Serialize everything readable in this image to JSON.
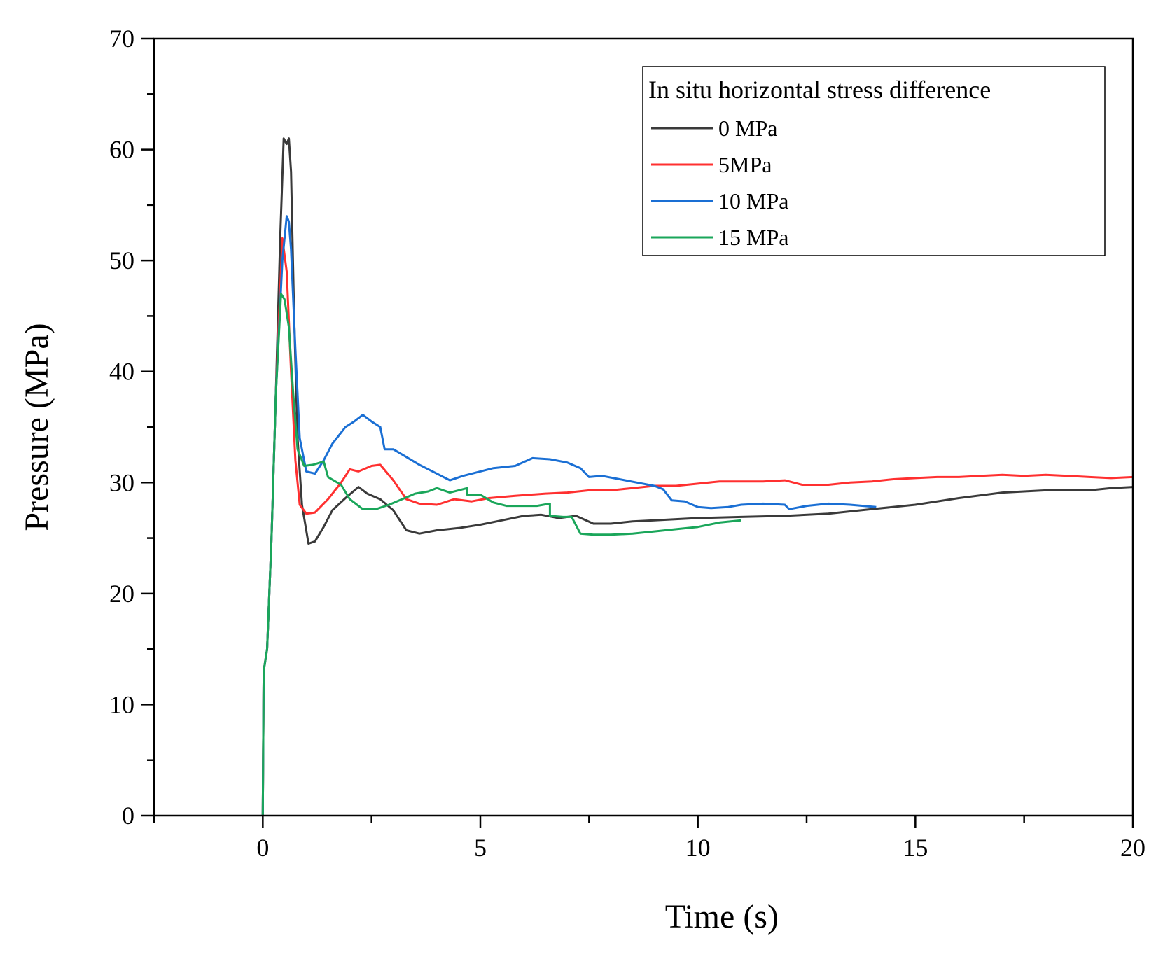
{
  "chart_data": {
    "type": "line",
    "xlabel": "Time (s)",
    "ylabel": "Pressure (MPa)",
    "xlim": [
      -2.5,
      20
    ],
    "ylim": [
      0,
      70
    ],
    "xticks": [
      0,
      5,
      10,
      15,
      20
    ],
    "yticks": [
      0,
      10,
      20,
      30,
      40,
      50,
      60,
      70
    ],
    "legend": {
      "title": "In situ horizontal stress difference",
      "position": "top-right"
    },
    "series": [
      {
        "name": "0 MPa",
        "color": "#3a3a3a",
        "points": [
          [
            0,
            0
          ],
          [
            0.02,
            13
          ],
          [
            0.1,
            15
          ],
          [
            0.2,
            25
          ],
          [
            0.3,
            38
          ],
          [
            0.4,
            52
          ],
          [
            0.48,
            61
          ],
          [
            0.55,
            60.5
          ],
          [
            0.6,
            61
          ],
          [
            0.65,
            58
          ],
          [
            0.72,
            45
          ],
          [
            0.8,
            34
          ],
          [
            0.9,
            28
          ],
          [
            1.05,
            24.5
          ],
          [
            1.2,
            24.7
          ],
          [
            1.4,
            26
          ],
          [
            1.6,
            27.5
          ],
          [
            1.9,
            28.6
          ],
          [
            2.2,
            29.6
          ],
          [
            2.4,
            29
          ],
          [
            2.7,
            28.5
          ],
          [
            3.0,
            27.5
          ],
          [
            3.3,
            25.7
          ],
          [
            3.6,
            25.4
          ],
          [
            4.0,
            25.7
          ],
          [
            4.5,
            25.9
          ],
          [
            5.0,
            26.2
          ],
          [
            5.5,
            26.6
          ],
          [
            6.0,
            27
          ],
          [
            6.4,
            27.1
          ],
          [
            6.8,
            26.8
          ],
          [
            7.2,
            27
          ],
          [
            7.6,
            26.3
          ],
          [
            8.0,
            26.3
          ],
          [
            8.5,
            26.5
          ],
          [
            9.0,
            26.6
          ],
          [
            9.5,
            26.7
          ],
          [
            10.0,
            26.8
          ],
          [
            11.0,
            26.9
          ],
          [
            12.0,
            27
          ],
          [
            13.0,
            27.2
          ],
          [
            14.0,
            27.6
          ],
          [
            15.0,
            28
          ],
          [
            16.0,
            28.6
          ],
          [
            17.0,
            29.1
          ],
          [
            18.0,
            29.3
          ],
          [
            19.0,
            29.3
          ],
          [
            19.5,
            29.5
          ],
          [
            20.0,
            29.6
          ]
        ]
      },
      {
        "name": "5MPa",
        "color": "#ff3030",
        "points": [
          [
            0,
            0
          ],
          [
            0.02,
            13
          ],
          [
            0.1,
            15
          ],
          [
            0.2,
            25
          ],
          [
            0.3,
            38
          ],
          [
            0.45,
            52
          ],
          [
            0.55,
            49
          ],
          [
            0.65,
            40
          ],
          [
            0.75,
            32
          ],
          [
            0.85,
            28
          ],
          [
            1.0,
            27.2
          ],
          [
            1.2,
            27.3
          ],
          [
            1.5,
            28.5
          ],
          [
            1.8,
            30
          ],
          [
            2.0,
            31.2
          ],
          [
            2.2,
            31
          ],
          [
            2.5,
            31.5
          ],
          [
            2.7,
            31.6
          ],
          [
            3.0,
            30.2
          ],
          [
            3.3,
            28.5
          ],
          [
            3.6,
            28.1
          ],
          [
            4.0,
            28
          ],
          [
            4.4,
            28.5
          ],
          [
            4.8,
            28.3
          ],
          [
            5.2,
            28.6
          ],
          [
            5.8,
            28.8
          ],
          [
            6.5,
            29
          ],
          [
            7.0,
            29.1
          ],
          [
            7.5,
            29.3
          ],
          [
            8.0,
            29.3
          ],
          [
            8.5,
            29.5
          ],
          [
            9.0,
            29.7
          ],
          [
            9.5,
            29.7
          ],
          [
            10.0,
            29.9
          ],
          [
            10.5,
            30.1
          ],
          [
            11.0,
            30.1
          ],
          [
            11.5,
            30.1
          ],
          [
            12.0,
            30.2
          ],
          [
            12.4,
            29.8
          ],
          [
            13.0,
            29.8
          ],
          [
            13.5,
            30
          ],
          [
            14.0,
            30.1
          ],
          [
            14.5,
            30.3
          ],
          [
            15.0,
            30.4
          ],
          [
            15.5,
            30.5
          ],
          [
            16.0,
            30.5
          ],
          [
            16.5,
            30.6
          ],
          [
            17.0,
            30.7
          ],
          [
            17.5,
            30.6
          ],
          [
            18.0,
            30.7
          ],
          [
            18.5,
            30.6
          ],
          [
            19.0,
            30.5
          ],
          [
            19.5,
            30.4
          ],
          [
            20.0,
            30.5
          ]
        ]
      },
      {
        "name": "10 MPa",
        "color": "#1a6fd4",
        "points": [
          [
            0,
            0
          ],
          [
            0.02,
            13
          ],
          [
            0.1,
            15
          ],
          [
            0.2,
            25
          ],
          [
            0.3,
            38
          ],
          [
            0.45,
            50
          ],
          [
            0.55,
            54
          ],
          [
            0.6,
            53.5
          ],
          [
            0.65,
            51
          ],
          [
            0.75,
            42
          ],
          [
            0.85,
            34
          ],
          [
            1.0,
            31
          ],
          [
            1.2,
            30.8
          ],
          [
            1.4,
            32
          ],
          [
            1.6,
            33.5
          ],
          [
            1.9,
            35
          ],
          [
            2.1,
            35.5
          ],
          [
            2.3,
            36.1
          ],
          [
            2.5,
            35.5
          ],
          [
            2.7,
            35
          ],
          [
            2.8,
            33
          ],
          [
            3.0,
            33
          ],
          [
            3.3,
            32.3
          ],
          [
            3.6,
            31.6
          ],
          [
            4.0,
            30.8
          ],
          [
            4.3,
            30.2
          ],
          [
            4.6,
            30.6
          ],
          [
            5.0,
            31
          ],
          [
            5.3,
            31.3
          ],
          [
            5.8,
            31.5
          ],
          [
            6.2,
            32.2
          ],
          [
            6.6,
            32.1
          ],
          [
            7.0,
            31.8
          ],
          [
            7.3,
            31.3
          ],
          [
            7.5,
            30.5
          ],
          [
            7.8,
            30.6
          ],
          [
            8.2,
            30.3
          ],
          [
            8.6,
            30
          ],
          [
            9.0,
            29.7
          ],
          [
            9.2,
            29.4
          ],
          [
            9.4,
            28.4
          ],
          [
            9.7,
            28.3
          ],
          [
            10.0,
            27.8
          ],
          [
            10.3,
            27.7
          ],
          [
            10.7,
            27.8
          ],
          [
            11.0,
            28
          ],
          [
            11.5,
            28.1
          ],
          [
            12.0,
            28
          ],
          [
            12.1,
            27.6
          ],
          [
            12.5,
            27.9
          ],
          [
            13.0,
            28.1
          ],
          [
            13.5,
            28
          ],
          [
            14.1,
            27.8
          ]
        ]
      },
      {
        "name": "15 MPa",
        "color": "#1aa65a",
        "points": [
          [
            0,
            0
          ],
          [
            0.02,
            13
          ],
          [
            0.1,
            15
          ],
          [
            0.2,
            25
          ],
          [
            0.3,
            38
          ],
          [
            0.42,
            47
          ],
          [
            0.5,
            46.5
          ],
          [
            0.6,
            44
          ],
          [
            0.7,
            38
          ],
          [
            0.8,
            33
          ],
          [
            0.95,
            31.5
          ],
          [
            1.15,
            31.6
          ],
          [
            1.4,
            31.9
          ],
          [
            1.5,
            30.5
          ],
          [
            1.8,
            29.8
          ],
          [
            2.0,
            28.5
          ],
          [
            2.3,
            27.6
          ],
          [
            2.6,
            27.6
          ],
          [
            2.9,
            28
          ],
          [
            3.2,
            28.5
          ],
          [
            3.5,
            29
          ],
          [
            3.8,
            29.2
          ],
          [
            4.0,
            29.5
          ],
          [
            4.3,
            29.1
          ],
          [
            4.5,
            29.3
          ],
          [
            4.7,
            29.5
          ],
          [
            4.7,
            28.9
          ],
          [
            5.0,
            28.9
          ],
          [
            5.3,
            28.2
          ],
          [
            5.6,
            27.9
          ],
          [
            6.0,
            27.9
          ],
          [
            6.3,
            27.9
          ],
          [
            6.6,
            28.1
          ],
          [
            6.6,
            27
          ],
          [
            6.9,
            26.9
          ],
          [
            7.1,
            26.9
          ],
          [
            7.3,
            25.4
          ],
          [
            7.6,
            25.3
          ],
          [
            8.0,
            25.3
          ],
          [
            8.5,
            25.4
          ],
          [
            9.0,
            25.6
          ],
          [
            9.5,
            25.8
          ],
          [
            10.0,
            26
          ],
          [
            10.5,
            26.4
          ],
          [
            11.0,
            26.6
          ]
        ]
      }
    ]
  }
}
